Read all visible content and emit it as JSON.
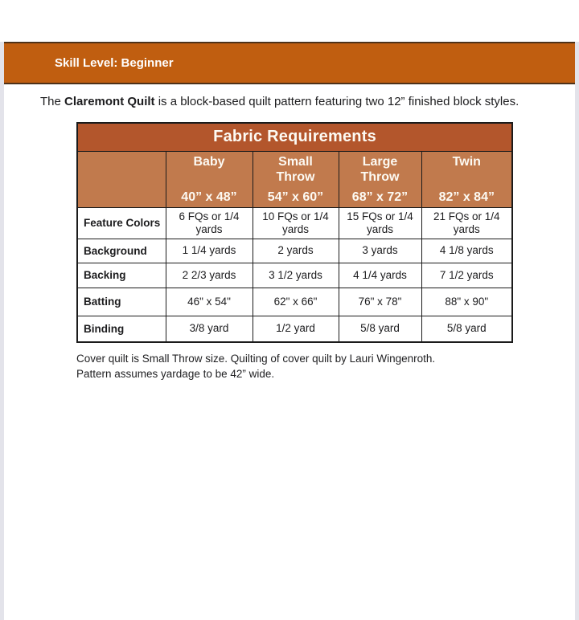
{
  "page": {
    "skill_banner": "Skill Level: Beginner",
    "intro_prefix": "The ",
    "intro_bold": "Claremont Quilt",
    "intro_suffix": " is a block-based quilt pattern featuring two 12” finished block styles.",
    "footer_line1": "Cover quilt is Small Throw size. Quilting of cover quilt by Lauri Wingenroth.",
    "footer_line2": "Pattern assumes yardage to be 42” wide."
  },
  "table": {
    "title": "Fabric Requirements",
    "columns": [
      {
        "name": "Baby",
        "dimensions": "40” x 48”"
      },
      {
        "name": "Small Throw",
        "dimensions": "54” x 60”"
      },
      {
        "name": "Large Throw",
        "dimensions": "68” x 72”"
      },
      {
        "name": "Twin",
        "dimensions": "82” x 84”"
      }
    ],
    "rows": [
      {
        "label": "Feature Colors",
        "values": [
          "6 FQs or 1/4 yards",
          "10 FQs or 1/4 yards",
          "15 FQs or 1/4 yards",
          "21 FQs or 1/4 yards"
        ]
      },
      {
        "label": "Background",
        "values": [
          "1 1/4 yards",
          "2 yards",
          "3 yards",
          "4 1/8 yards"
        ]
      },
      {
        "label": "Backing",
        "values": [
          "2 2/3 yards",
          "3 1/2 yards",
          "4 1/4 yards",
          "7 1/2 yards"
        ]
      },
      {
        "label": "Batting",
        "values": [
          "46\" x 54\"",
          "62\" x 66\"",
          "76\" x 78\"",
          "88\" x 90\""
        ]
      },
      {
        "label": "Binding",
        "values": [
          "3/8 yard",
          "1/2 yard",
          "5/8 yard",
          "5/8 yard"
        ]
      }
    ]
  },
  "colors": {
    "banner_bg": "#C05E10",
    "banner_border": "#4E3118",
    "title_bg": "#B3562C",
    "header_bg": "#C17A4D",
    "table_border": "#1B1B1B",
    "page_edge": "#E3E3EA",
    "body_text": "#1C1C1E",
    "light_text": "#FDFAF3"
  }
}
